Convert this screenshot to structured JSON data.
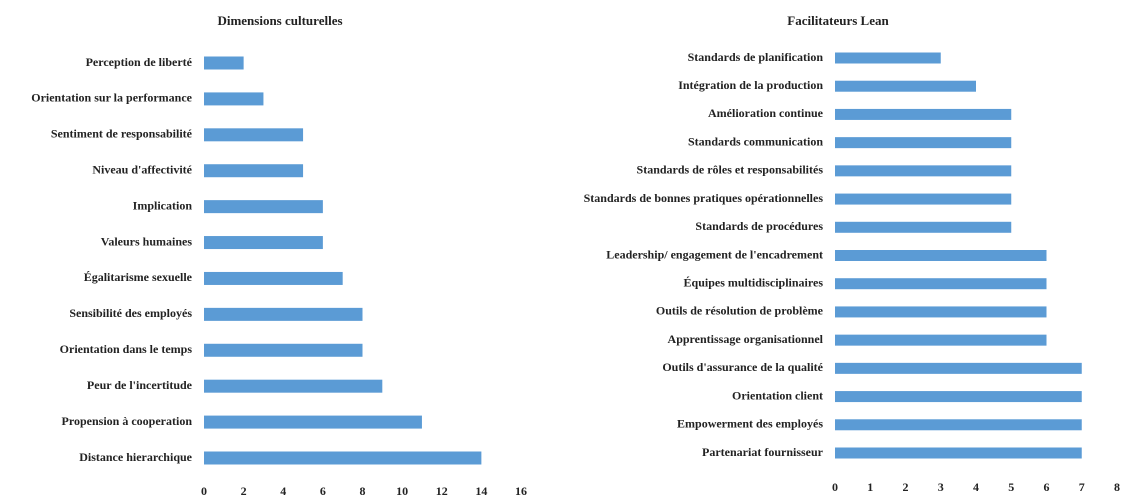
{
  "chart_data": [
    {
      "type": "barh",
      "title": "Dimensions culturelles",
      "categories": [
        "Perception de liberté",
        "Orientation sur la performance",
        "Sentiment de responsabilité",
        "Niveau d'affectivité",
        "Implication",
        "Valeurs humaines",
        "Égalitarisme sexuelle",
        "Sensibilité des employés",
        "Orientation dans le temps",
        "Peur de l'incertitude",
        "Propension à cooperation",
        "Distance hierarchique"
      ],
      "values": [
        2,
        3,
        5,
        5,
        6,
        6,
        7,
        8,
        8,
        9,
        11,
        14
      ],
      "color": "#5b9bd5",
      "xlim": [
        0,
        16
      ],
      "xticks": [
        0,
        2,
        4,
        6,
        8,
        10,
        12,
        14,
        16
      ]
    },
    {
      "type": "barh",
      "title": "Facilitateurs Lean",
      "categories": [
        "Standards de planification",
        "Intégration de la production",
        "Amélioration continue",
        "Standards communication",
        "Standards de rôles et responsabilités",
        "Standards de bonnes pratiques opérationnelles",
        "Standards de procédures",
        "Leadership/ engagement de l'encadrement",
        "Équipes multidisciplinaires",
        "Outils de résolution de problème",
        "Apprentissage organisationnel",
        "Outils d'assurance de la qualité",
        "Orientation client",
        "Empowerment des employés",
        "Partenariat fournisseur"
      ],
      "values": [
        3,
        4,
        5,
        5,
        5,
        5,
        5,
        6,
        6,
        6,
        6,
        7,
        7,
        7,
        7
      ],
      "color": "#5b9bd5",
      "xlim": [
        0,
        8
      ],
      "xticks": [
        0,
        1,
        2,
        3,
        4,
        5,
        6,
        7,
        8
      ]
    }
  ]
}
